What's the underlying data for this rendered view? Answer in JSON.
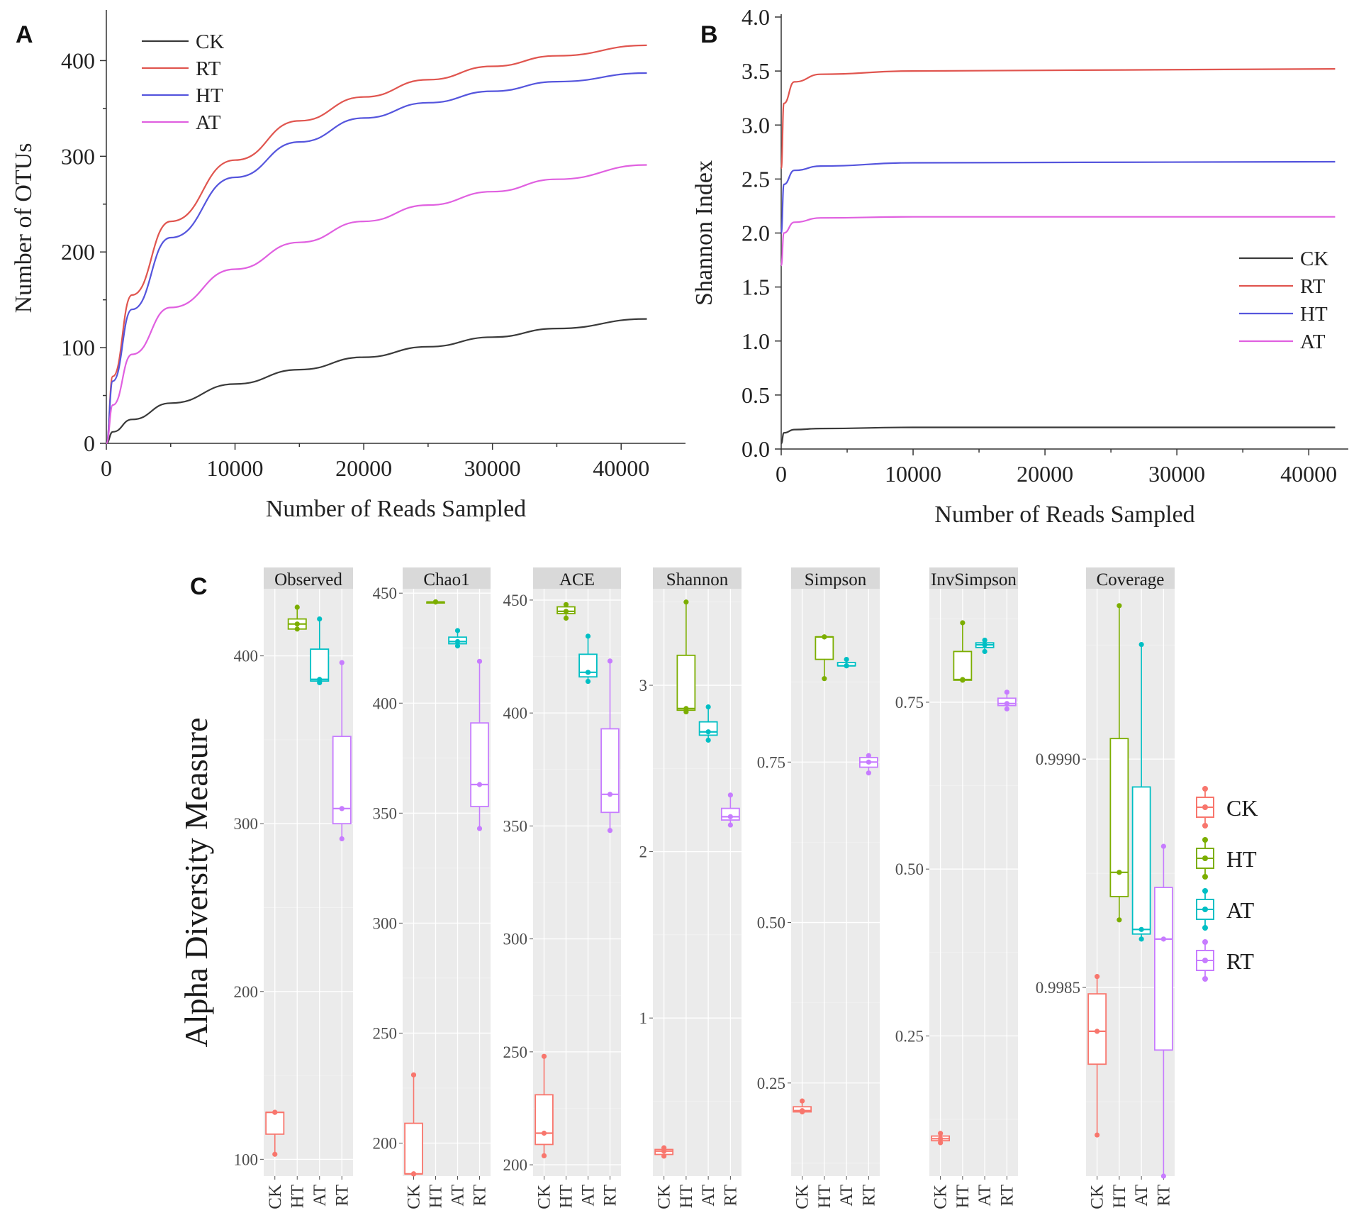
{
  "chart_data": [
    {
      "panel": "A",
      "type": "line",
      "xlabel": "Number of Reads Sampled",
      "ylabel": "Number of OTUs",
      "xlim": [
        0,
        45000
      ],
      "ylim": [
        0,
        450
      ],
      "xticks": [
        0,
        10000,
        20000,
        30000,
        40000
      ],
      "yticks": [
        0,
        100,
        200,
        300,
        400
      ],
      "legend_position": "top-left",
      "series": [
        {
          "name": "CK",
          "color": "#3a3a3a",
          "x": [
            0,
            500,
            2000,
            5000,
            10000,
            15000,
            20000,
            25000,
            30000,
            35000,
            42000
          ],
          "y": [
            0,
            12,
            25,
            42,
            62,
            77,
            90,
            101,
            111,
            120,
            130
          ]
        },
        {
          "name": "RT",
          "color": "#e0554f",
          "x": [
            0,
            500,
            2000,
            5000,
            10000,
            15000,
            20000,
            25000,
            30000,
            35000,
            42000
          ],
          "y": [
            0,
            70,
            155,
            232,
            296,
            337,
            362,
            380,
            394,
            405,
            416
          ]
        },
        {
          "name": "HT",
          "color": "#5555dd",
          "x": [
            0,
            500,
            2000,
            5000,
            10000,
            15000,
            20000,
            25000,
            30000,
            35000,
            42000
          ],
          "y": [
            0,
            65,
            140,
            215,
            278,
            315,
            340,
            356,
            368,
            378,
            387
          ]
        },
        {
          "name": "AT",
          "color": "#e060e0",
          "x": [
            0,
            500,
            2000,
            5000,
            10000,
            15000,
            20000,
            25000,
            30000,
            35000,
            42000
          ],
          "y": [
            0,
            40,
            93,
            142,
            182,
            210,
            232,
            249,
            263,
            276,
            291
          ]
        }
      ]
    },
    {
      "panel": "B",
      "type": "line",
      "xlabel": "Number of Reads Sampled",
      "ylabel": "Shannon Index",
      "xlim": [
        0,
        43000
      ],
      "ylim": [
        0,
        4.0
      ],
      "xticks": [
        0,
        10000,
        20000,
        30000,
        40000
      ],
      "yticks": [
        "0.0",
        "0.5",
        "1.0",
        "1.5",
        "2.0",
        "2.5",
        "3.0",
        "3.5",
        "4.0"
      ],
      "legend_position": "center-right",
      "series": [
        {
          "name": "CK",
          "color": "#3a3a3a",
          "x": [
            0,
            200,
            1000,
            3000,
            10000,
            42000
          ],
          "y": [
            0.05,
            0.15,
            0.18,
            0.19,
            0.2,
            0.2
          ]
        },
        {
          "name": "RT",
          "color": "#e0554f",
          "x": [
            0,
            200,
            1000,
            3000,
            10000,
            42000
          ],
          "y": [
            2.6,
            3.2,
            3.4,
            3.47,
            3.5,
            3.52
          ]
        },
        {
          "name": "HT",
          "color": "#5555dd",
          "x": [
            0,
            200,
            1000,
            3000,
            10000,
            42000
          ],
          "y": [
            2.0,
            2.45,
            2.58,
            2.62,
            2.65,
            2.66
          ]
        },
        {
          "name": "AT",
          "color": "#e060e0",
          "x": [
            0,
            200,
            1000,
            3000,
            10000,
            42000
          ],
          "y": [
            1.7,
            2.0,
            2.1,
            2.14,
            2.15,
            2.15
          ]
        }
      ]
    },
    {
      "panel": "C",
      "type": "box",
      "ylabel": "Alpha Diversity Measure",
      "groups": [
        "CK",
        "HT",
        "AT",
        "RT"
      ],
      "group_colors": {
        "CK": "#f8766d",
        "HT": "#7cae00",
        "AT": "#00bfc4",
        "RT": "#c77cff"
      },
      "legend_position": "right",
      "facets": [
        {
          "name": "Observed",
          "ylim": [
            90,
            440
          ],
          "yticks": [
            "100",
            "200",
            "300",
            "400"
          ],
          "yvals": [
            100,
            200,
            300,
            400
          ],
          "boxes": [
            {
              "g": "CK",
              "min": 103,
              "q1": 115,
              "med": 128,
              "q3": 128,
              "max": 128
            },
            {
              "g": "HT",
              "min": 416,
              "q1": 416,
              "med": 419,
              "q3": 422,
              "max": 429
            },
            {
              "g": "AT",
              "min": 384,
              "q1": 385,
              "med": 386,
              "q3": 404,
              "max": 422
            },
            {
              "g": "RT",
              "min": 291,
              "q1": 300,
              "med": 309,
              "q3": 352,
              "max": 396
            }
          ]
        },
        {
          "name": "Chao1",
          "ylim": [
            185,
            452
          ],
          "yticks": [
            "200",
            "250",
            "300",
            "350",
            "400",
            "450"
          ],
          "yvals": [
            200,
            250,
            300,
            350,
            400,
            450
          ],
          "boxes": [
            {
              "g": "CK",
              "min": 186,
              "q1": 186,
              "med": 186,
              "q3": 209,
              "max": 231
            },
            {
              "g": "HT",
              "min": 446,
              "q1": 446,
              "med": 446,
              "q3": 446,
              "max": 446
            },
            {
              "g": "AT",
              "min": 426,
              "q1": 427,
              "med": 428,
              "q3": 430,
              "max": 433
            },
            {
              "g": "RT",
              "min": 343,
              "q1": 353,
              "med": 363,
              "q3": 391,
              "max": 419
            }
          ]
        },
        {
          "name": "ACE",
          "ylim": [
            195,
            455
          ],
          "yticks": [
            "200",
            "250",
            "300",
            "350",
            "400",
            "450"
          ],
          "yvals": [
            200,
            250,
            300,
            350,
            400,
            450
          ],
          "boxes": [
            {
              "g": "CK",
              "min": 204,
              "q1": 209,
              "med": 214,
              "q3": 231,
              "max": 248
            },
            {
              "g": "HT",
              "min": 442,
              "q1": 444,
              "med": 445,
              "q3": 447,
              "max": 448
            },
            {
              "g": "AT",
              "min": 414,
              "q1": 416,
              "med": 418,
              "q3": 426,
              "max": 434
            },
            {
              "g": "RT",
              "min": 348,
              "q1": 356,
              "med": 364,
              "q3": 393,
              "max": 423
            }
          ]
        },
        {
          "name": "Shannon",
          "ylim": [
            0.05,
            3.58
          ],
          "yticks": [
            "1",
            "2",
            "3"
          ],
          "yvals": [
            1,
            2,
            3
          ],
          "boxes": [
            {
              "g": "CK",
              "min": 0.17,
              "q1": 0.18,
              "med": 0.2,
              "q3": 0.21,
              "max": 0.22
            },
            {
              "g": "HT",
              "min": 2.84,
              "q1": 2.85,
              "med": 2.86,
              "q3": 3.18,
              "max": 3.5
            },
            {
              "g": "AT",
              "min": 2.67,
              "q1": 2.7,
              "med": 2.72,
              "q3": 2.78,
              "max": 2.87
            },
            {
              "g": "RT",
              "min": 2.16,
              "q1": 2.19,
              "med": 2.21,
              "q3": 2.26,
              "max": 2.34
            }
          ]
        },
        {
          "name": "Simpson",
          "ylim": [
            0.105,
            1.02
          ],
          "yticks": [
            "0.25",
            "0.50",
            "0.75"
          ],
          "yvals": [
            0.25,
            0.5,
            0.75
          ],
          "boxes": [
            {
              "g": "CK",
              "min": 0.205,
              "q1": 0.205,
              "med": 0.207,
              "q3": 0.213,
              "max": 0.222
            },
            {
              "g": "HT",
              "min": 0.88,
              "q1": 0.91,
              "med": 0.945,
              "q3": 0.945,
              "max": 0.945
            },
            {
              "g": "AT",
              "min": 0.9,
              "q1": 0.9,
              "med": 0.9,
              "q3": 0.905,
              "max": 0.91
            },
            {
              "g": "RT",
              "min": 0.733,
              "q1": 0.742,
              "med": 0.75,
              "q3": 0.757,
              "max": 0.76
            }
          ]
        },
        {
          "name": "InvSimpson",
          "ylim": [
            0.04,
            0.92
          ],
          "yticks": [
            "0.25",
            "0.50",
            "0.75"
          ],
          "yvals": [
            0.25,
            0.5,
            0.75
          ],
          "boxes": [
            {
              "g": "CK",
              "min": 0.09,
              "q1": 0.093,
              "med": 0.096,
              "q3": 0.1,
              "max": 0.104
            },
            {
              "g": "HT",
              "min": 0.783,
              "q1": 0.783,
              "med": 0.784,
              "q3": 0.826,
              "max": 0.869
            },
            {
              "g": "AT",
              "min": 0.826,
              "q1": 0.832,
              "med": 0.836,
              "q3": 0.839,
              "max": 0.843
            },
            {
              "g": "RT",
              "min": 0.74,
              "q1": 0.745,
              "med": 0.748,
              "q3": 0.756,
              "max": 0.765
            }
          ]
        },
        {
          "name": "Coverage",
          "ylim": [
            0.998087,
            0.999373
          ],
          "yticks": [
            "0.9985",
            "0.9990"
          ],
          "yvals": [
            0.9985,
            0.999
          ],
          "boxes": [
            {
              "g": "CK",
              "min": 0.998177,
              "q1": 0.998332,
              "med": 0.998404,
              "q3": 0.998486,
              "max": 0.998524
            },
            {
              "g": "HT",
              "min": 0.998648,
              "q1": 0.998699,
              "med": 0.998752,
              "q3": 0.999045,
              "max": 0.999336
            },
            {
              "g": "AT",
              "min": 0.998606,
              "q1": 0.998617,
              "med": 0.998627,
              "q3": 0.998939,
              "max": 0.999251
            },
            {
              "g": "RT",
              "min": 0.998087,
              "q1": 0.998363,
              "med": 0.998606,
              "q3": 0.998719,
              "max": 0.998809
            }
          ]
        }
      ]
    }
  ]
}
